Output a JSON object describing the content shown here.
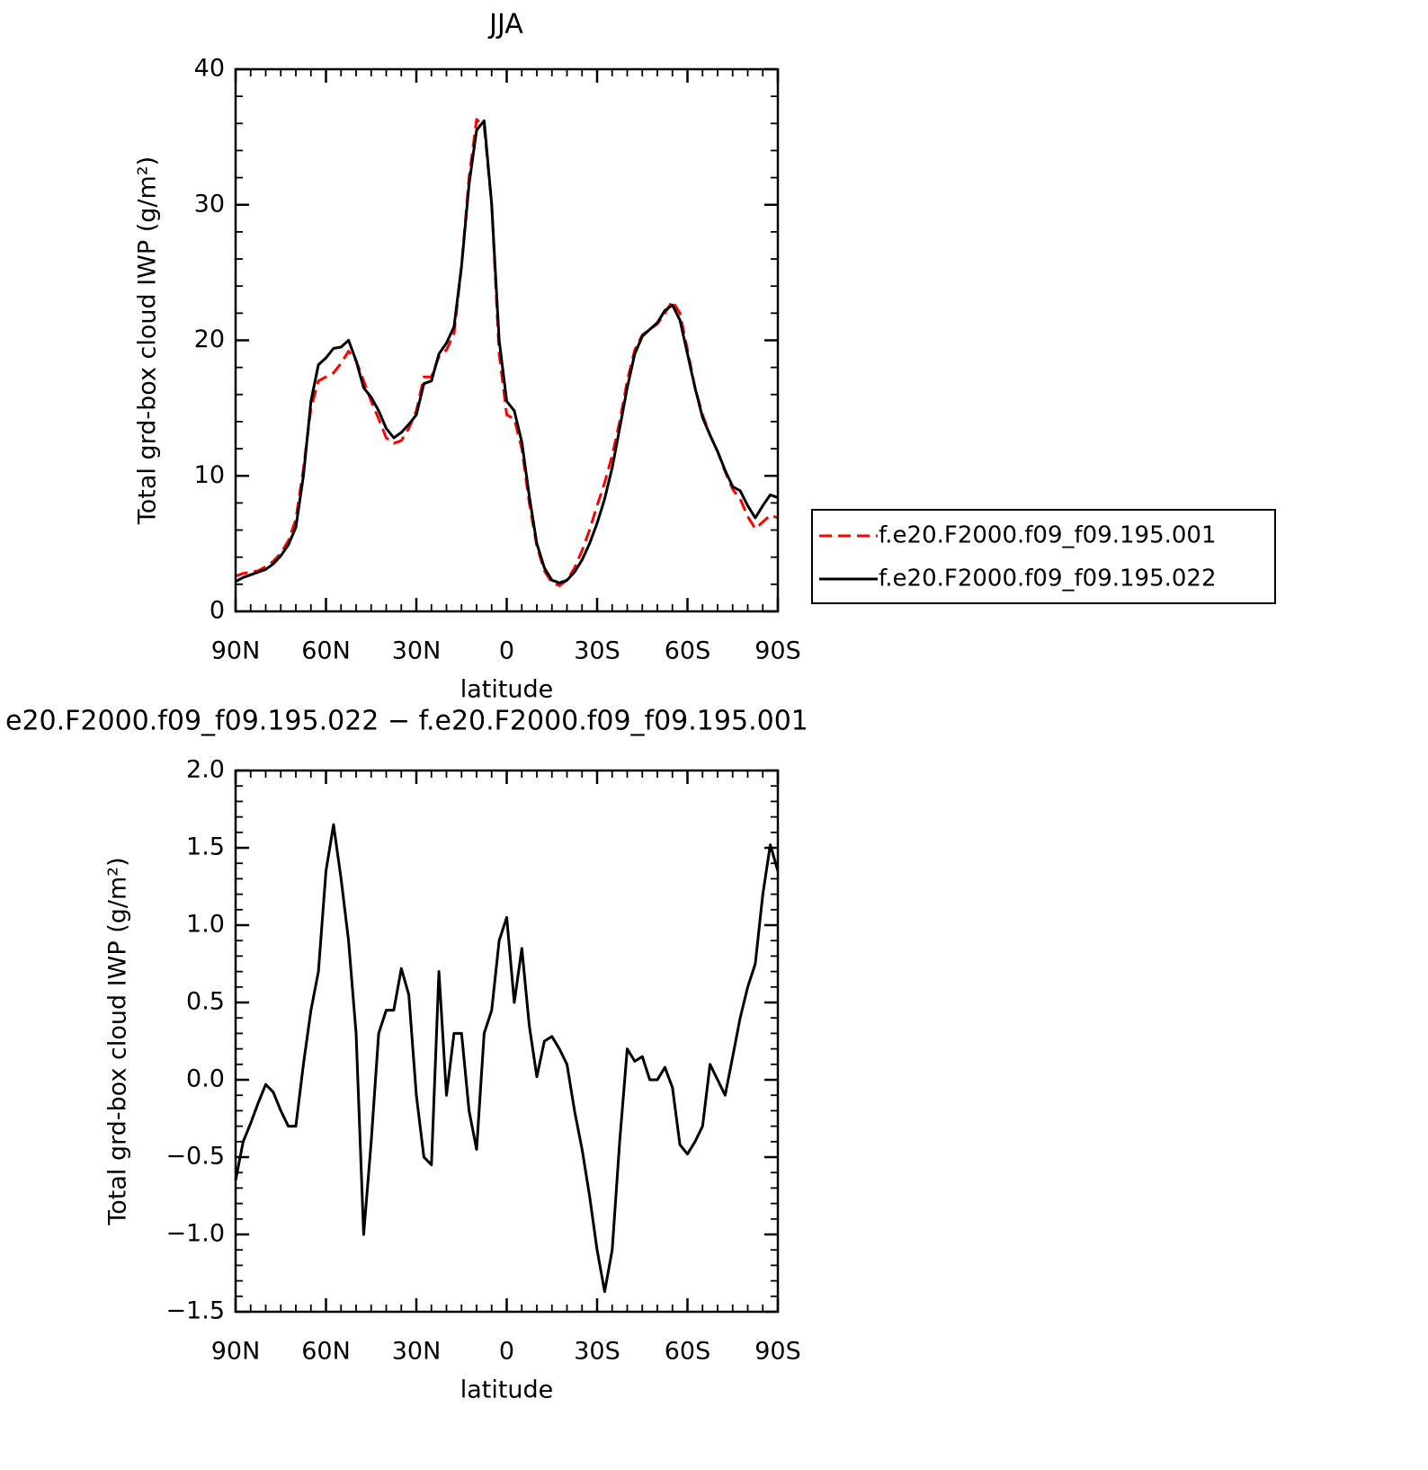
{
  "chart_data": [
    {
      "type": "line",
      "title": "JJA",
      "xlabel": "latitude",
      "ylabel": "Total grd-box cloud IWP (g/m²)",
      "x": [
        90,
        87.5,
        85,
        82.5,
        80,
        77.5,
        75,
        72.5,
        70,
        67.5,
        65,
        62.5,
        60,
        57.5,
        55,
        52.5,
        50,
        47.5,
        45,
        42.5,
        40,
        37.5,
        35,
        32.5,
        30,
        27.5,
        25,
        22.5,
        20,
        17.5,
        15,
        12.5,
        10,
        7.5,
        5,
        2.5,
        0,
        -2.5,
        -5,
        -7.5,
        -10,
        -12.5,
        -15,
        -17.5,
        -20,
        -22.5,
        -25,
        -27.5,
        -30,
        -32.5,
        -35,
        -37.5,
        -40,
        -42.5,
        -45,
        -47.5,
        -50,
        -52.5,
        -55,
        -57.5,
        -60,
        -62.5,
        -65,
        -67.5,
        -70,
        -72.5,
        -75,
        -77.5,
        -80,
        -82.5,
        -85,
        -87.5,
        -90
      ],
      "series": [
        {
          "name": "f.e20.F2000.f09_f09.195.001",
          "color": "#ff0000",
          "dashed": true,
          "values": [
            2.6,
            2.8,
            2.9,
            3.0,
            3.3,
            3.7,
            4.3,
            5.2,
            6.8,
            10.5,
            15.0,
            17.0,
            17.3,
            17.6,
            18.3,
            19.2,
            18.5,
            17.0,
            15.5,
            14.2,
            12.8,
            12.4,
            12.6,
            13.5,
            14.8,
            17.3,
            17.3,
            18.8,
            19.3,
            20.5,
            25.5,
            32.0,
            36.3,
            35.8,
            30.0,
            19.0,
            14.5,
            14.2,
            12.0,
            8.0,
            4.8,
            3.0,
            2.1,
            1.9,
            2.3,
            3.2,
            4.5,
            6.0,
            7.8,
            9.5,
            11.5,
            14.0,
            17.0,
            19.3,
            20.4,
            20.8,
            21.2,
            22.0,
            22.9,
            22.0,
            19.3,
            16.5,
            14.5,
            13.0,
            11.8,
            10.3,
            9.0,
            8.3,
            7.0,
            6.1,
            6.6,
            7.1,
            6.9
          ]
        },
        {
          "name": "f.e20.F2000.f09_f09.195.022",
          "color": "#000000",
          "dashed": false,
          "values": [
            2.2,
            2.5,
            2.7,
            2.9,
            3.1,
            3.5,
            4.1,
            4.9,
            6.2,
            10.0,
            15.5,
            18.2,
            18.7,
            19.4,
            19.5,
            20.0,
            18.5,
            16.5,
            15.8,
            14.8,
            13.5,
            12.8,
            13.2,
            13.8,
            14.5,
            16.8,
            17.0,
            19.0,
            19.8,
            21.0,
            25.5,
            31.5,
            35.5,
            36.2,
            30.0,
            20.0,
            15.5,
            14.8,
            12.5,
            8.5,
            5.0,
            3.2,
            2.3,
            2.1,
            2.3,
            2.9,
            3.8,
            5.0,
            6.5,
            8.3,
            10.6,
            13.5,
            16.5,
            19.0,
            20.3,
            20.8,
            21.3,
            22.2,
            22.6,
            21.5,
            19.0,
            16.5,
            14.3,
            13.0,
            11.8,
            10.4,
            9.2,
            8.9,
            7.8,
            6.9,
            7.8,
            8.6,
            8.4
          ]
        }
      ],
      "xlim": [
        90,
        -90
      ],
      "xticks": [
        {
          "value": 90,
          "label": "90N"
        },
        {
          "value": 60,
          "label": "60N"
        },
        {
          "value": 30,
          "label": "30N"
        },
        0,
        {
          "value": -30,
          "label": "30S"
        },
        {
          "value": -60,
          "label": "60S"
        },
        {
          "value": -90,
          "label": "90S"
        }
      ],
      "ylim": [
        0,
        40
      ],
      "yticks": [
        0,
        10,
        20,
        30,
        40
      ],
      "grid": false,
      "legend": "right"
    },
    {
      "type": "line",
      "title": "e20.F2000.f09_f09.195.022 − f.e20.F2000.f09_f09.195.001",
      "xlabel": "latitude",
      "ylabel": "Total grd-box cloud IWP (g/m²)",
      "x": [
        90,
        87.5,
        85,
        82.5,
        80,
        77.5,
        75,
        72.5,
        70,
        67.5,
        65,
        62.5,
        60,
        57.5,
        55,
        52.5,
        50,
        47.5,
        45,
        42.5,
        40,
        37.5,
        35,
        32.5,
        30,
        27.5,
        25,
        22.5,
        20,
        17.5,
        15,
        12.5,
        10,
        7.5,
        5,
        2.5,
        0,
        -2.5,
        -5,
        -7.5,
        -10,
        -12.5,
        -15,
        -17.5,
        -20,
        -22.5,
        -25,
        -27.5,
        -30,
        -32.5,
        -35,
        -37.5,
        -40,
        -42.5,
        -45,
        -47.5,
        -50,
        -52.5,
        -55,
        -57.5,
        -60,
        -62.5,
        -65,
        -67.5,
        -70,
        -72.5,
        -75,
        -77.5,
        -80,
        -82.5,
        -85,
        -87.5,
        -90
      ],
      "color": "#000000",
      "values": [
        -0.65,
        -0.4,
        -0.28,
        -0.15,
        -0.03,
        -0.08,
        -0.2,
        -0.3,
        -0.3,
        0.1,
        0.45,
        0.7,
        1.35,
        1.65,
        1.3,
        0.9,
        0.3,
        -1.0,
        -0.4,
        0.3,
        0.45,
        0.45,
        0.72,
        0.55,
        -0.1,
        -0.5,
        -0.55,
        0.7,
        -0.1,
        0.3,
        0.3,
        -0.2,
        -0.45,
        0.3,
        0.45,
        0.9,
        1.05,
        0.5,
        0.85,
        0.35,
        0.02,
        0.25,
        0.28,
        0.2,
        0.1,
        -0.2,
        -0.45,
        -0.75,
        -1.1,
        -1.37,
        -1.1,
        -0.4,
        0.2,
        0.12,
        0.15,
        0.0,
        0.0,
        0.08,
        -0.05,
        -0.42,
        -0.48,
        -0.4,
        -0.3,
        0.1,
        0.0,
        -0.1,
        0.15,
        0.4,
        0.6,
        0.75,
        1.2,
        1.52,
        1.35
      ],
      "xlim": [
        90,
        -90
      ],
      "xticks": [
        {
          "value": 90,
          "label": "90N"
        },
        {
          "value": 60,
          "label": "60N"
        },
        {
          "value": 30,
          "label": "30N"
        },
        0,
        {
          "value": -30,
          "label": "30S"
        },
        {
          "value": -60,
          "label": "60S"
        },
        {
          "value": -90,
          "label": "90S"
        }
      ],
      "ylim": [
        -1.5,
        2
      ],
      "yticks": [
        {
          "value": -1.5,
          "label": "−1.5"
        },
        {
          "value": -1,
          "label": "−1.0"
        },
        {
          "value": -0.5,
          "label": "−0.5"
        },
        {
          "value": 0,
          "label": "0.0"
        },
        0.5,
        {
          "value": 1,
          "label": "1.0"
        },
        1.5,
        {
          "value": 2,
          "label": "2.0"
        }
      ],
      "grid": false
    }
  ]
}
